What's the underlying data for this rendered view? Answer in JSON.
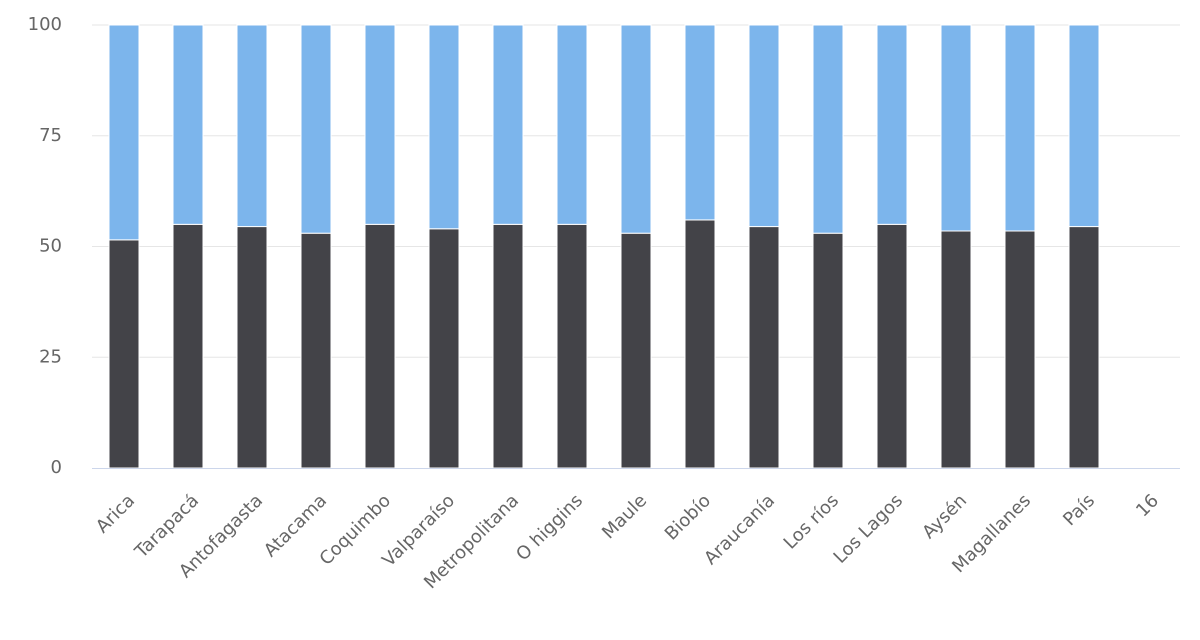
{
  "chart_data": {
    "type": "stacked_bar",
    "categories": [
      "Arica",
      "Tarapacá",
      "Antofagasta",
      "Atacama",
      "Coquimbo",
      "Valparaíso",
      "Metropolitana",
      "O higgins",
      "Maule",
      "Biobío",
      "Araucanía",
      "Los ríos",
      "Los Lagos",
      "Aysén",
      "Magallanes",
      "País",
      "16"
    ],
    "series": [
      {
        "color": "#434348",
        "values": [
          51.5,
          55,
          54.5,
          53,
          55,
          54,
          55,
          55,
          53,
          56,
          54.5,
          53,
          55,
          53.5,
          53.5,
          54.5,
          null
        ]
      },
      {
        "color": "#7cb5ec",
        "values": [
          48.5,
          45,
          45.5,
          47,
          45,
          46,
          45,
          45,
          47,
          44,
          45.5,
          47,
          45,
          46.5,
          46.5,
          45.5,
          null
        ]
      }
    ],
    "ylim": [
      0,
      100
    ],
    "yticks": [
      0,
      25,
      50,
      75,
      100
    ],
    "grid": true
  }
}
